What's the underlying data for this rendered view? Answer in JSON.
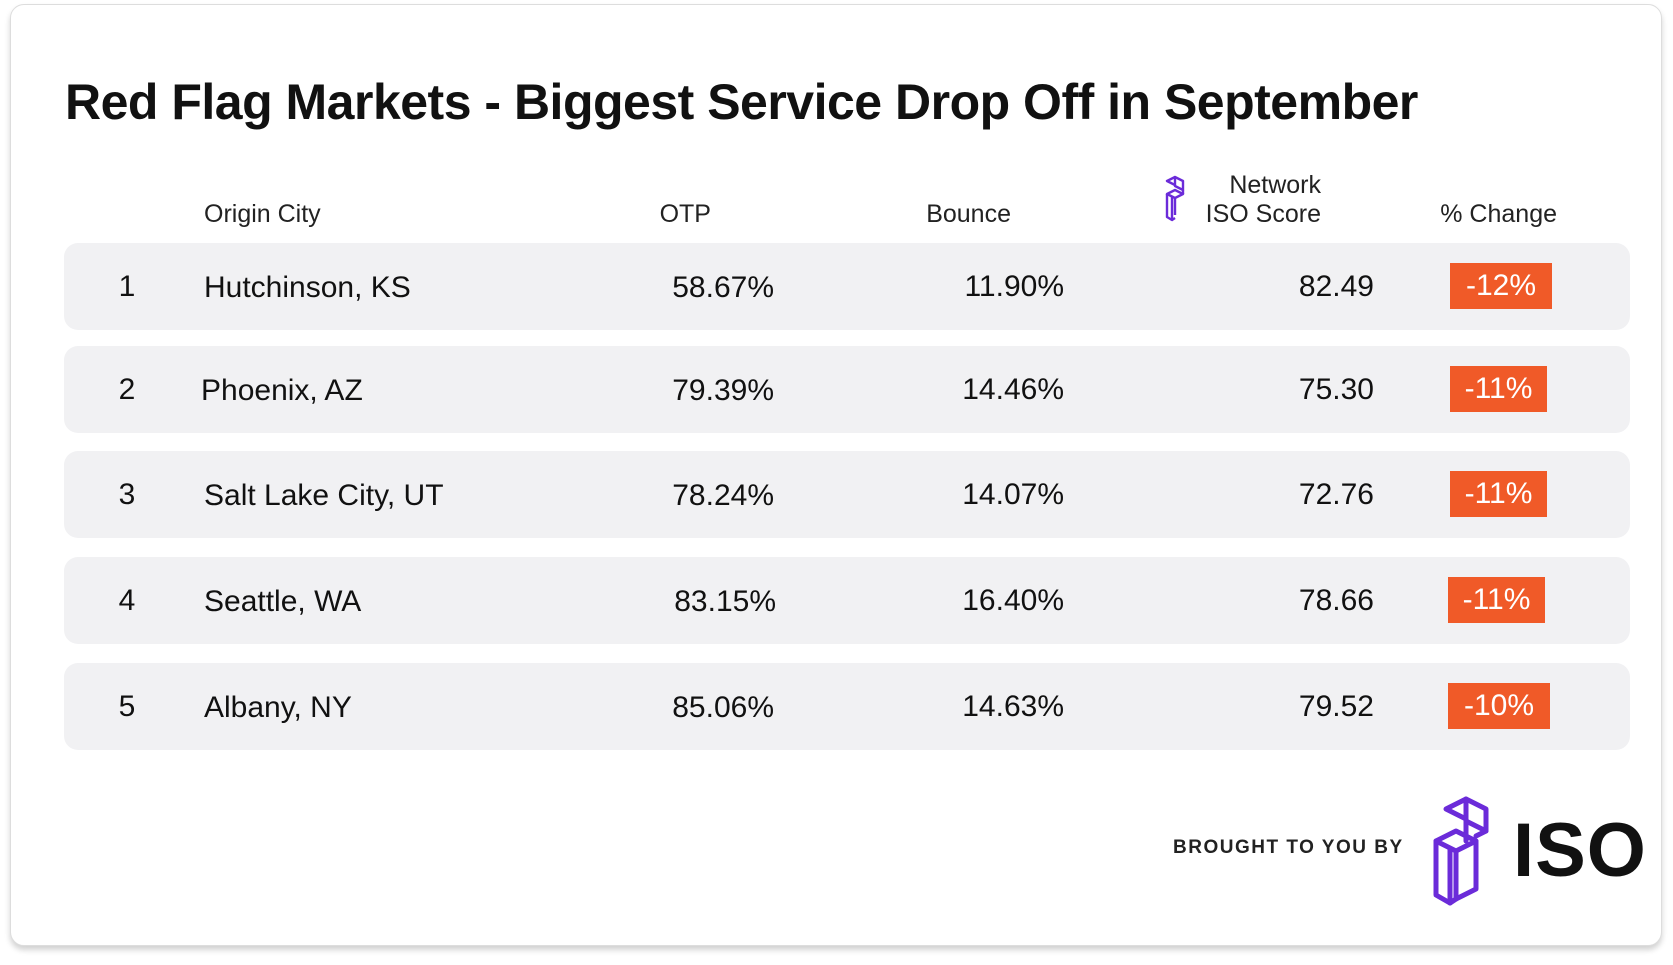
{
  "title": "Red Flag Markets - Biggest Service Drop Off in September",
  "columns": {
    "origin_city": "Origin City",
    "otp": "OTP",
    "bounce": "Bounce",
    "iso_line1": "Network",
    "iso_line2": "ISO Score",
    "change": "% Change"
  },
  "chart_data": {
    "type": "table",
    "title": "Red Flag Markets - Biggest Service Drop Off in September",
    "headers": [
      "",
      "Origin City",
      "OTP",
      "Bounce",
      "Network ISO Score",
      "% Change"
    ],
    "rows": [
      {
        "rank": "1",
        "city": "Hutchinson, KS",
        "otp": "58.67%",
        "bounce": "11.90%",
        "iso_score": "82.49",
        "change": "-12%"
      },
      {
        "rank": "2",
        "city": "Phoenix, AZ",
        "otp": "79.39%",
        "bounce": "14.46%",
        "iso_score": "75.30",
        "change": "-11%"
      },
      {
        "rank": "3",
        "city": "Salt Lake City, UT",
        "otp": "78.24%",
        "bounce": "14.07%",
        "iso_score": "72.76",
        "change": "-11%"
      },
      {
        "rank": "4",
        "city": "Seattle, WA",
        "otp": "83.15%",
        "bounce": "16.40%",
        "iso_score": "78.66",
        "change": "-11%"
      },
      {
        "rank": "5",
        "city": "Albany, NY",
        "otp": "85.06%",
        "bounce": "14.63%",
        "iso_score": "79.52",
        "change": "-10%"
      }
    ]
  },
  "footer": {
    "brought_by": "BROUGHT TO YOU BY",
    "logo_text": "ISO",
    "logo_icon": "iso-logo-icon"
  },
  "colors": {
    "badge": "#f05a28",
    "row_bg": "#f1f1f3",
    "logo_purple": "#6b2bd9"
  }
}
